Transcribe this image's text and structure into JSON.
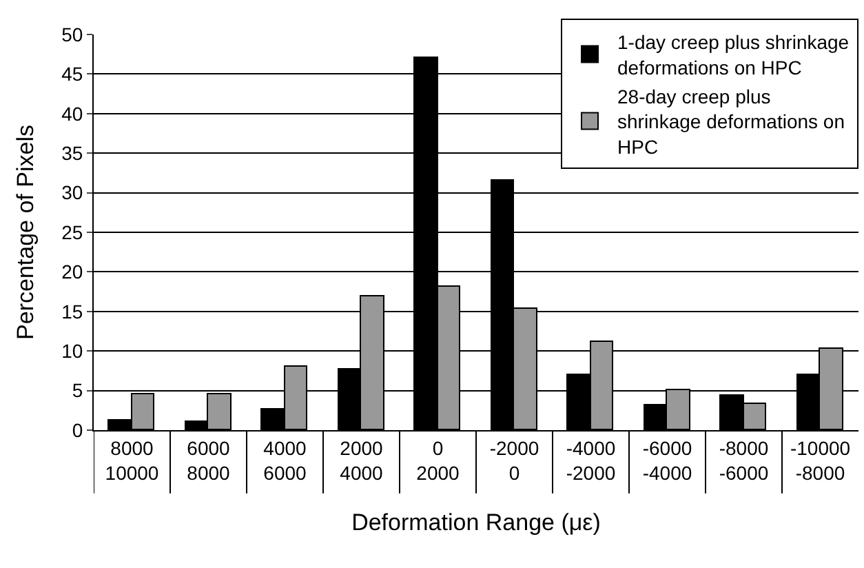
{
  "chart_data": {
    "type": "bar",
    "xlabel": "Deformation Range (με)",
    "ylabel": "Percentage of Pixels",
    "categories": [
      "8000\n10000",
      "6000\n8000",
      "4000\n6000",
      "2000\n4000",
      "0\n2000",
      "-2000\n0",
      "-4000\n-2000",
      "-6000\n-4000",
      "-8000\n-6000",
      "-10000\n-8000"
    ],
    "series": [
      {
        "name": "1-day creep plus shrinkage deformations on HPC",
        "color": "#000000",
        "values": [
          1.3,
          1.1,
          2.7,
          7.7,
          47,
          31.5,
          7,
          3.2,
          4.3,
          7
        ]
      },
      {
        "name": "28-day creep plus shrinkage deformations on HPC",
        "color": "#999999",
        "values": [
          4.5,
          4.5,
          8,
          16.9,
          18.2,
          15.4,
          11.2,
          5.1,
          3.3,
          10.2
        ]
      }
    ],
    "ylim": [
      0,
      50
    ],
    "yticks": [
      0,
      5,
      10,
      15,
      20,
      25,
      30,
      35,
      40,
      45,
      50
    ],
    "grid": "y",
    "legend": "top right"
  }
}
